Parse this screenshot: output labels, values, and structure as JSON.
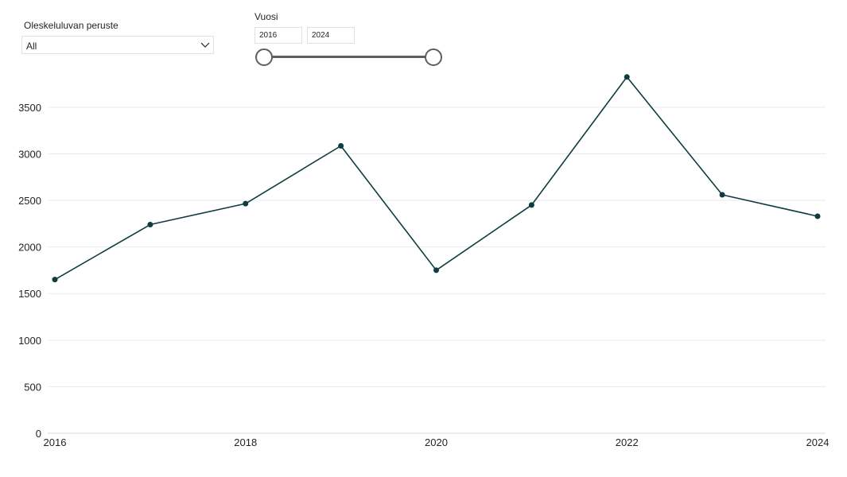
{
  "slicers": {
    "basis": {
      "label": "Oleskeluluvan peruste",
      "selected": "All"
    },
    "year": {
      "label": "Vuosi",
      "from": "2016",
      "to": "2024",
      "range": [
        2016,
        2024
      ]
    }
  },
  "chart_data": {
    "type": "line",
    "title": "",
    "xlabel": "",
    "ylabel": "",
    "x": [
      2016,
      2017,
      2018,
      2019,
      2020,
      2021,
      2022,
      2023,
      2024
    ],
    "series": [
      {
        "values": [
          1650,
          2240,
          2465,
          3085,
          1750,
          2450,
          3825,
          2560,
          2330
        ]
      }
    ],
    "xticks": [
      "2016",
      "2018",
      "2020",
      "2022",
      "2024"
    ],
    "yticks": [
      "0",
      "500",
      "1000",
      "1500",
      "2000",
      "2500",
      "3000",
      "3500"
    ],
    "xlim": [
      2016,
      2024
    ],
    "ylim": [
      0,
      3900
    ],
    "grid": true,
    "legend": "none",
    "colors": {
      "line": "#0e3c40",
      "grid": "#eaeaea"
    }
  }
}
